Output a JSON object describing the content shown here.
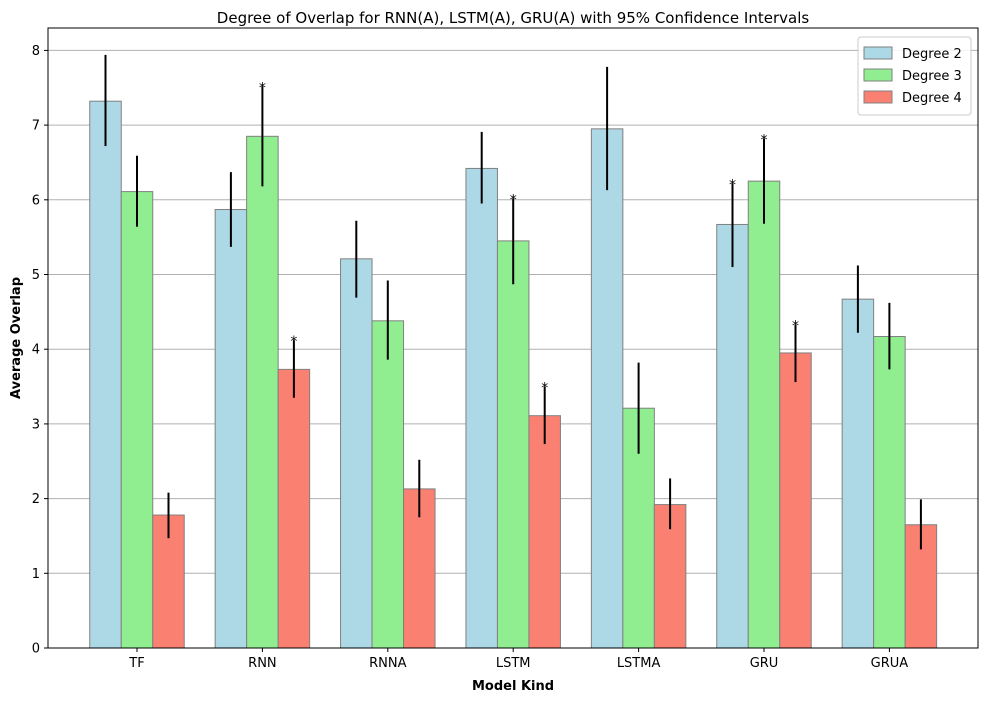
{
  "chart_data": {
    "type": "bar",
    "title": "Degree of Overlap for RNN(A), LSTM(A), GRU(A) with 95% Confidence Intervals",
    "xlabel": "Model Kind",
    "ylabel": "Average Overlap",
    "categories": [
      "TF",
      "RNN",
      "RNNA",
      "LSTM",
      "LSTMA",
      "GRU",
      "GRUA"
    ],
    "ylim": [
      0,
      8.3
    ],
    "yticks": [
      0,
      1,
      2,
      3,
      4,
      5,
      6,
      7,
      8
    ],
    "grid": "y",
    "legend_position": "top-right",
    "significance_marker": "*",
    "series": [
      {
        "name": "Degree 2",
        "color": "#add8e6",
        "values": [
          7.32,
          5.87,
          5.21,
          6.42,
          6.95,
          5.67,
          4.67
        ],
        "ci_low": [
          6.72,
          5.37,
          4.69,
          5.95,
          6.13,
          5.1,
          4.22
        ],
        "ci_high": [
          7.94,
          6.37,
          5.72,
          6.91,
          7.78,
          6.22,
          5.12
        ],
        "significant": [
          false,
          false,
          false,
          false,
          false,
          true,
          false
        ]
      },
      {
        "name": "Degree 3",
        "color": "#90ee90",
        "values": [
          6.11,
          6.85,
          4.38,
          5.45,
          3.21,
          6.25,
          4.17
        ],
        "ci_low": [
          5.64,
          6.18,
          3.86,
          4.87,
          2.6,
          5.68,
          3.73
        ],
        "ci_high": [
          6.59,
          7.52,
          4.92,
          6.02,
          3.82,
          6.82,
          4.62
        ],
        "significant": [
          false,
          true,
          false,
          true,
          false,
          true,
          false
        ]
      },
      {
        "name": "Degree 4",
        "color": "#fa8072",
        "values": [
          1.78,
          3.73,
          2.13,
          3.11,
          1.92,
          3.95,
          1.65
        ],
        "ci_low": [
          1.47,
          3.35,
          1.75,
          2.73,
          1.59,
          3.56,
          1.32
        ],
        "ci_high": [
          2.08,
          4.12,
          2.52,
          3.5,
          2.27,
          4.33,
          1.99
        ],
        "significant": [
          false,
          true,
          false,
          true,
          false,
          true,
          false
        ]
      }
    ]
  }
}
